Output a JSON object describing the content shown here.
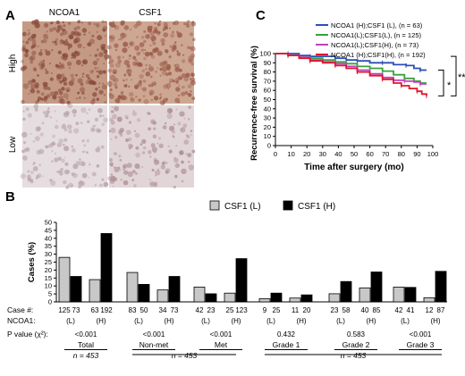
{
  "panel_a": {
    "label": "A",
    "col_headers": [
      "NCOA1",
      "CSF1"
    ],
    "row_labels": [
      "High",
      "Low"
    ]
  },
  "panel_b_label": "B",
  "panel_c_label": "C",
  "chart_data": [
    {
      "type": "line",
      "panel": "C",
      "xlabel": "Time after surgery (mo)",
      "ylabel": "Recurrence-free survival (%)",
      "xlim": [
        0,
        100
      ],
      "ylim": [
        0,
        100
      ],
      "xticks": [
        0,
        10,
        20,
        30,
        40,
        50,
        60,
        70,
        80,
        90,
        100
      ],
      "yticks": [
        0,
        10,
        20,
        30,
        40,
        50,
        60,
        70,
        80,
        90,
        100
      ],
      "legend_position": "top-right",
      "series": [
        {
          "name": "NCOA1 (H);CSF1 (L), (n = 63)",
          "color": "#2b4fb5",
          "x": [
            0,
            8,
            15,
            22,
            30,
            38,
            45,
            52,
            60,
            68,
            75,
            83,
            88,
            92,
            96
          ],
          "y": [
            100,
            100,
            98,
            97,
            97,
            95,
            93,
            92,
            90,
            90,
            88,
            87,
            84,
            82,
            82
          ]
        },
        {
          "name": "NCOA1(L);CSF1(L), (n = 125)",
          "color": "#3aa23a",
          "x": [
            0,
            8,
            15,
            22,
            30,
            38,
            45,
            52,
            60,
            68,
            75,
            82,
            88,
            92,
            96
          ],
          "y": [
            100,
            98,
            96,
            95,
            93,
            91,
            89,
            86,
            84,
            81,
            77,
            73,
            70,
            68,
            68
          ]
        },
        {
          "name": "NCOA1(L);CSF1(H), (n = 73)",
          "color": "#c040c0",
          "x": [
            0,
            8,
            15,
            22,
            30,
            38,
            45,
            52,
            60,
            68,
            75,
            82,
            88,
            92,
            96
          ],
          "y": [
            100,
            98,
            96,
            93,
            91,
            89,
            86,
            82,
            78,
            74,
            71,
            70,
            69,
            67,
            67
          ]
        },
        {
          "name": "NCOA1 (H);CSF1(H), (n = 192)",
          "color": "#e0162b",
          "x": [
            0,
            8,
            15,
            22,
            30,
            38,
            45,
            52,
            60,
            68,
            75,
            80,
            85,
            90,
            93,
            96
          ],
          "y": [
            100,
            98,
            95,
            92,
            90,
            87,
            84,
            80,
            76,
            72,
            68,
            65,
            62,
            59,
            56,
            54
          ]
        }
      ],
      "annotations": [
        "*",
        "**"
      ]
    },
    {
      "type": "bar",
      "panel": "B",
      "ylabel": "Cases (%)",
      "ylim": [
        0,
        50
      ],
      "yticks": [
        0,
        5,
        10,
        15,
        20,
        25,
        30,
        35,
        40,
        45,
        50
      ],
      "legend_position": "top-center",
      "series_names": [
        "CSF1 (L)",
        "CSF1 (H)"
      ],
      "series_colors": [
        "#c8c8c8",
        "#000000"
      ],
      "row_labels": {
        "case": "Case #:",
        "ncoa1": "NCOA1:",
        "pvalue": "P value (χ²):"
      },
      "groups": [
        {
          "label": "Total",
          "pvalue": "<0.001",
          "pairs": [
            {
              "ncoa1": "(L)",
              "values": [
                28,
                16
              ],
              "cases": [
                "125",
                "73"
              ]
            },
            {
              "ncoa1": "(H)",
              "values": [
                14,
                43
              ],
              "cases": [
                "63",
                "192"
              ]
            }
          ]
        },
        {
          "label": "Non-met",
          "pvalue": "<0.001",
          "pairs": [
            {
              "ncoa1": "(L)",
              "values": [
                18.5,
                11
              ],
              "cases": [
                "83",
                "50"
              ]
            },
            {
              "ncoa1": "(H)",
              "values": [
                7.5,
                16
              ],
              "cases": [
                "34",
                "73"
              ]
            }
          ]
        },
        {
          "label": "Met",
          "pvalue": "<0.001",
          "pairs": [
            {
              "ncoa1": "(L)",
              "values": [
                9.3,
                5.1
              ],
              "cases": [
                "42",
                "23"
              ]
            },
            {
              "ncoa1": "(H)",
              "values": [
                5.5,
                27.2
              ],
              "cases": [
                "25",
                "123"
              ]
            }
          ]
        },
        {
          "label": "Grade 1",
          "pvalue": "0.432",
          "pairs": [
            {
              "ncoa1": "(L)",
              "values": [
                2,
                5.5
              ],
              "cases": [
                "9",
                "25"
              ]
            },
            {
              "ncoa1": "(H)",
              "values": [
                2.4,
                4.4
              ],
              "cases": [
                "11",
                "20"
              ]
            }
          ]
        },
        {
          "label": "Grade 2",
          "pvalue": "0.583",
          "pairs": [
            {
              "ncoa1": "(L)",
              "values": [
                5.1,
                12.8
              ],
              "cases": [
                "23",
                "58"
              ]
            },
            {
              "ncoa1": "(H)",
              "values": [
                8.8,
                18.8
              ],
              "cases": [
                "40",
                "85"
              ]
            }
          ]
        },
        {
          "label": "Grade 3",
          "pvalue": "<0.001",
          "pairs": [
            {
              "ncoa1": "(L)",
              "values": [
                9.3,
                9.1
              ],
              "cases": [
                "42",
                "41"
              ]
            },
            {
              "ncoa1": "(H)",
              "values": [
                2.6,
                19.2
              ],
              "cases": [
                "12",
                "87"
              ]
            }
          ]
        }
      ],
      "n_labels": [
        "n = 453",
        "n = 453",
        "n = 453"
      ]
    }
  ]
}
